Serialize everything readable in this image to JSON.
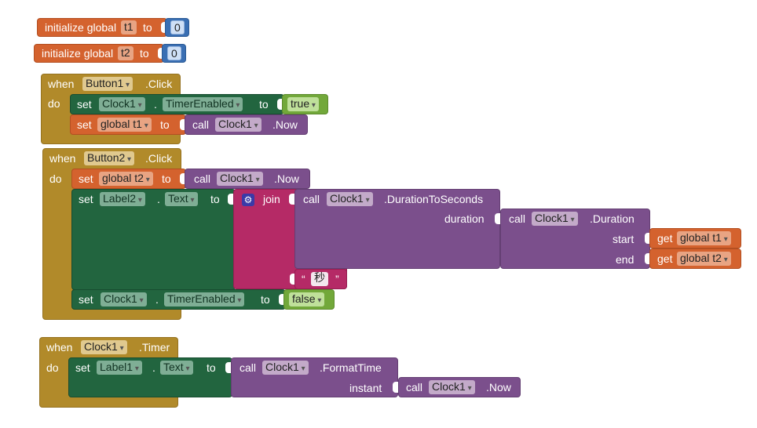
{
  "globals": [
    {
      "label": "initialize global",
      "name": "t1",
      "to": "to",
      "value": "0"
    },
    {
      "label": "initialize global",
      "name": "t2",
      "to": "to",
      "value": "0"
    }
  ],
  "kw": {
    "when": "when",
    "do": "do",
    "set": "set",
    "call": "call",
    "get": "get",
    "to": "to",
    "dot": ".",
    "join": "join"
  },
  "button1_event": {
    "component": "Button1",
    "event": ".Click",
    "set_clock_component": "Clock1",
    "set_clock_property": "TimerEnabled",
    "set_clock_value": "true",
    "set_global": "global t1",
    "call_component": "Clock1",
    "call_method": ".Now"
  },
  "button2_event": {
    "component": "Button2",
    "event": ".Click",
    "set_global": "global t2",
    "call_component": "Clock1",
    "call_method": ".Now",
    "label_component": "Label2",
    "label_property": "Text",
    "dur_component": "Clock1",
    "dur_method": ".DurationToSeconds",
    "duration_label": "duration",
    "duration_component": "Clock1",
    "duration_method": ".Duration",
    "start_label": "start",
    "start_var": "global t1",
    "end_label": "end",
    "end_var": "global t2",
    "text_open": "“",
    "text_value": "秒",
    "text_close": "”",
    "timer_component": "Clock1",
    "timer_property": "TimerEnabled",
    "timer_value": "false"
  },
  "clock_event": {
    "component": "Clock1",
    "event": ".Timer",
    "label_component": "Label1",
    "label_property": "Text",
    "format_component": "Clock1",
    "format_method": ".FormatTime",
    "instant_label": "instant",
    "now_component": "Clock1",
    "now_method": ".Now"
  }
}
